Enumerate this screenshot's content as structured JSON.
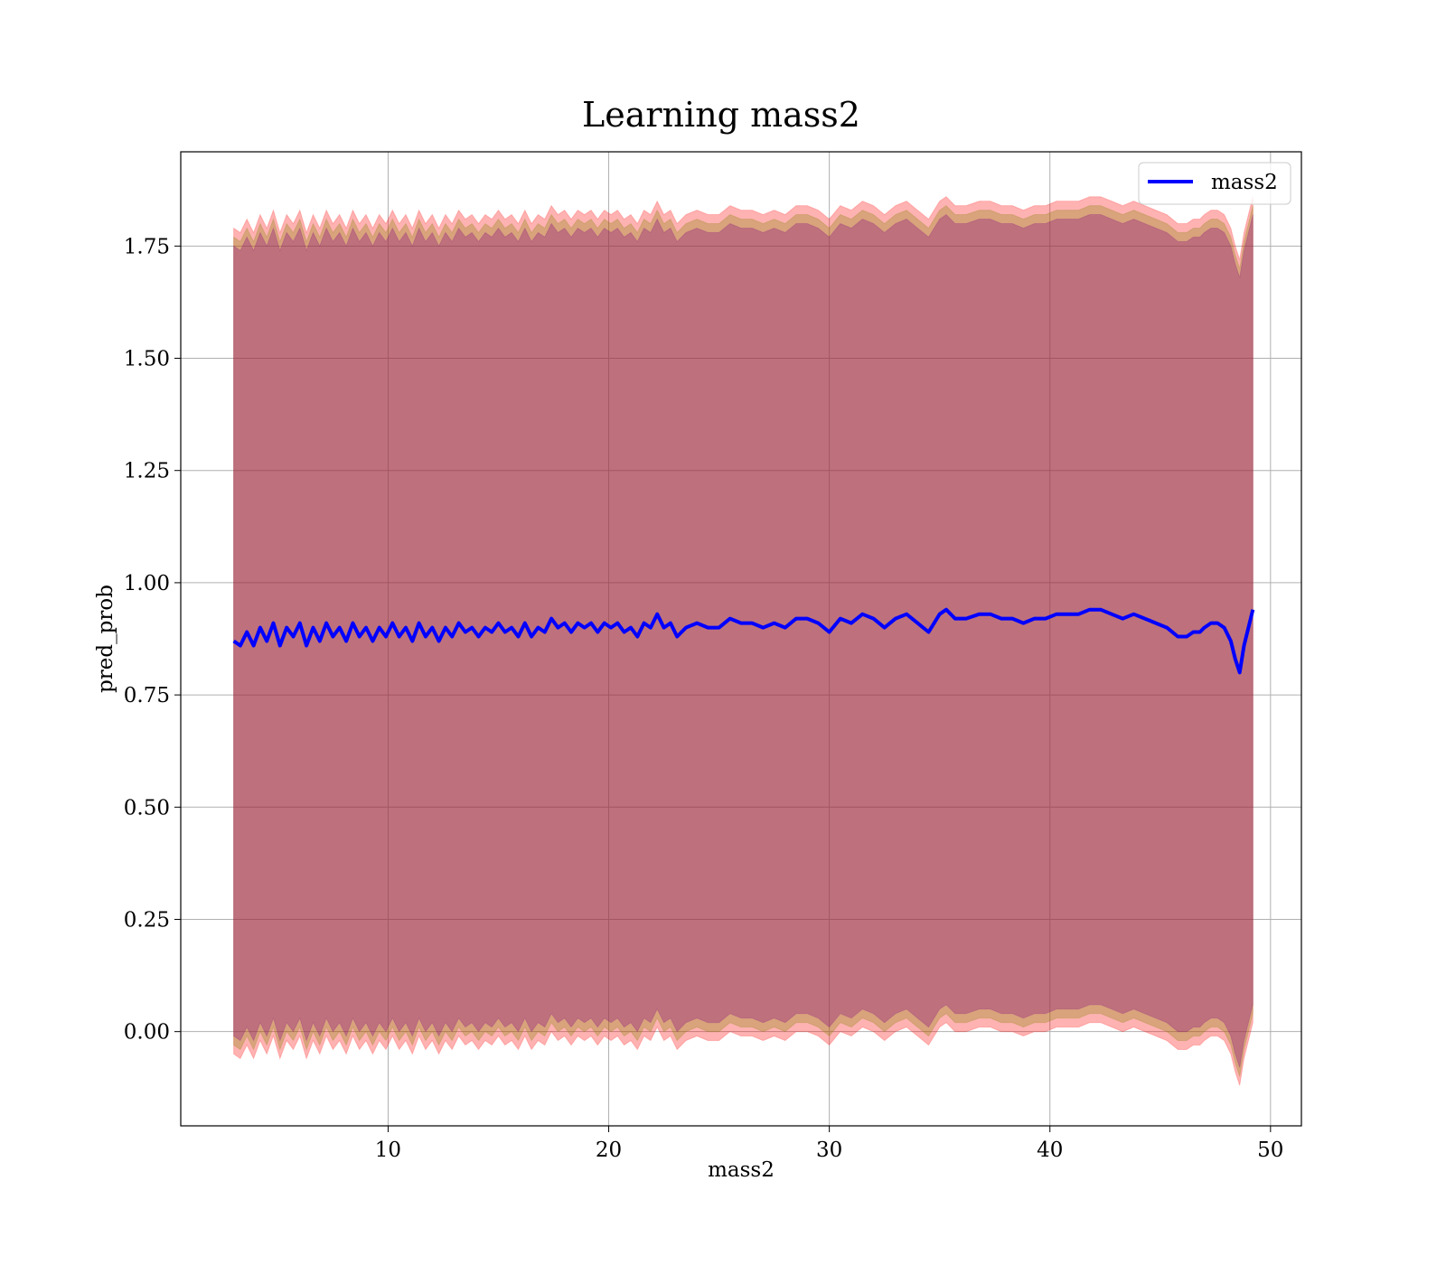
{
  "chart_data": {
    "type": "line",
    "title": "Learning mass2",
    "xlabel": "mass2",
    "ylabel": "pred_prob",
    "xlim": [
      0.6,
      51.4
    ],
    "ylim": [
      -0.21,
      1.96
    ],
    "xticks": [
      10,
      20,
      30,
      40,
      50
    ],
    "xtick_labels": [
      "10",
      "20",
      "30",
      "40",
      "50"
    ],
    "yticks": [
      0.0,
      0.25,
      0.5,
      0.75,
      1.0,
      1.25,
      1.5,
      1.75
    ],
    "ytick_labels": [
      "0.00",
      "0.25",
      "0.50",
      "0.75",
      "1.00",
      "1.25",
      "1.50",
      "1.75"
    ],
    "grid": true,
    "legend": {
      "position": "top-right",
      "entries": [
        "mass2"
      ]
    },
    "series": [
      {
        "name": "mass2",
        "color": "#0000ff",
        "x": [
          3.0,
          3.3,
          3.6,
          3.9,
          4.2,
          4.5,
          4.8,
          5.1,
          5.4,
          5.7,
          6.0,
          6.3,
          6.6,
          6.9,
          7.2,
          7.5,
          7.8,
          8.1,
          8.4,
          8.7,
          9.0,
          9.3,
          9.6,
          9.9,
          10.2,
          10.5,
          10.8,
          11.1,
          11.4,
          11.7,
          12.0,
          12.3,
          12.6,
          12.9,
          13.2,
          13.5,
          13.8,
          14.1,
          14.4,
          14.7,
          15.0,
          15.3,
          15.6,
          15.9,
          16.2,
          16.5,
          16.8,
          17.1,
          17.4,
          17.7,
          18.0,
          18.3,
          18.6,
          18.9,
          19.2,
          19.5,
          19.8,
          20.1,
          20.4,
          20.7,
          21.0,
          21.3,
          21.6,
          21.9,
          22.2,
          22.5,
          22.8,
          23.1,
          23.5,
          24.0,
          24.5,
          25.0,
          25.5,
          26.0,
          26.5,
          27.0,
          27.5,
          28.0,
          28.5,
          29.0,
          29.5,
          30.0,
          30.5,
          31.0,
          31.5,
          32.0,
          32.5,
          33.0,
          33.5,
          34.0,
          34.5,
          35.0,
          35.3,
          35.7,
          36.2,
          36.8,
          37.3,
          37.8,
          38.3,
          38.8,
          39.3,
          39.8,
          40.3,
          40.8,
          41.3,
          41.8,
          42.3,
          42.8,
          43.3,
          43.8,
          44.3,
          44.8,
          45.3,
          45.8,
          46.2,
          46.5,
          46.8,
          47.0,
          47.3,
          47.6,
          47.9,
          48.2,
          48.4,
          48.6,
          48.8,
          49.0,
          49.2
        ],
        "y": [
          0.87,
          0.86,
          0.89,
          0.86,
          0.9,
          0.87,
          0.91,
          0.86,
          0.9,
          0.88,
          0.91,
          0.86,
          0.9,
          0.87,
          0.91,
          0.88,
          0.9,
          0.87,
          0.91,
          0.88,
          0.9,
          0.87,
          0.9,
          0.88,
          0.91,
          0.88,
          0.9,
          0.87,
          0.91,
          0.88,
          0.9,
          0.87,
          0.9,
          0.88,
          0.91,
          0.89,
          0.9,
          0.88,
          0.9,
          0.89,
          0.91,
          0.89,
          0.9,
          0.88,
          0.91,
          0.88,
          0.9,
          0.89,
          0.92,
          0.9,
          0.91,
          0.89,
          0.91,
          0.9,
          0.91,
          0.89,
          0.91,
          0.9,
          0.91,
          0.89,
          0.9,
          0.88,
          0.91,
          0.9,
          0.93,
          0.9,
          0.91,
          0.88,
          0.9,
          0.91,
          0.9,
          0.9,
          0.92,
          0.91,
          0.91,
          0.9,
          0.91,
          0.9,
          0.92,
          0.92,
          0.91,
          0.89,
          0.92,
          0.91,
          0.93,
          0.92,
          0.9,
          0.92,
          0.93,
          0.91,
          0.89,
          0.93,
          0.94,
          0.92,
          0.92,
          0.93,
          0.93,
          0.92,
          0.92,
          0.91,
          0.92,
          0.92,
          0.93,
          0.93,
          0.93,
          0.94,
          0.94,
          0.93,
          0.92,
          0.93,
          0.92,
          0.91,
          0.9,
          0.88,
          0.88,
          0.89,
          0.89,
          0.9,
          0.91,
          0.91,
          0.9,
          0.87,
          0.83,
          0.8,
          0.86,
          0.9,
          0.94
        ]
      }
    ],
    "bands": [
      {
        "description": "outer",
        "color": "#ff0000",
        "opacity": 0.3,
        "half_width": 0.92
      },
      {
        "description": "middle",
        "color": "#808000",
        "opacity": 0.3,
        "half_width": 0.9
      },
      {
        "description": "inner",
        "color": "#800080",
        "opacity": 0.3,
        "half_width": 0.88
      }
    ]
  }
}
